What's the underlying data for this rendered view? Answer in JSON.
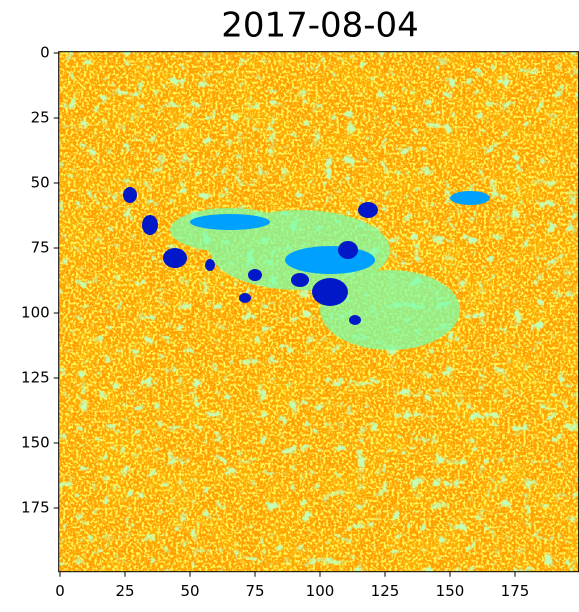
{
  "chart_data": {
    "type": "image",
    "title": "2017-08-04",
    "xlim": [
      -0.5,
      199.5
    ],
    "ylim": [
      199.5,
      -0.5
    ],
    "xticks": [
      0,
      25,
      50,
      75,
      100,
      125,
      150,
      175
    ],
    "yticks": [
      0,
      25,
      50,
      75,
      100,
      125,
      150,
      175
    ]
  }
}
